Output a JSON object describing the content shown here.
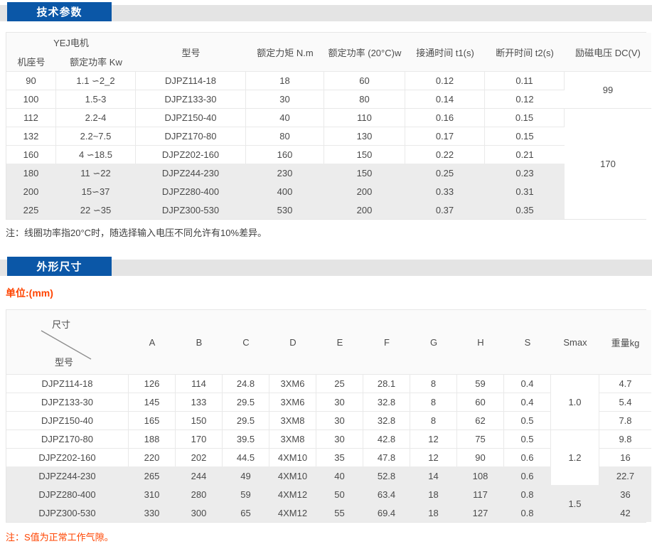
{
  "theme": {
    "accent_blue": "#0b57a7",
    "accent_red": "#ff4400",
    "row_gray": "#ececec"
  },
  "tech": {
    "title": "技术参数",
    "note": "注：线圈功率指20°C时，随选择输入电压不同允许有10%差异。",
    "table": {
      "header": {
        "group": "YEJ电机",
        "frame": "机座号",
        "power_kw": "额定功率 Kw",
        "model": "型号",
        "torque": "额定力矩 N.m",
        "power_20c": "额定功率 (20°C)w",
        "t1": "接通时间 t1(s)",
        "t2": "断开时间 t2(s)",
        "voltage": "励磁电压 DC(V)"
      },
      "rows": [
        [
          "90",
          "1.1 ∽2_2",
          "DJPZ114-18",
          "18",
          "60",
          "0.12",
          "0.11"
        ],
        [
          "100",
          "1.5-3",
          "DJPZ133-30",
          "30",
          "80",
          "0.14",
          "0.12"
        ],
        [
          "112",
          "2.2-4",
          "DJPZ150-40",
          "40",
          "110",
          "0.16",
          "0.15"
        ],
        [
          "132",
          "2.2~7.5",
          "DJPZ170-80",
          "80",
          "130",
          "0.17",
          "0.15"
        ],
        [
          "160",
          "4 ∽18.5",
          "DJPZ202-160",
          "160",
          "150",
          "0.22",
          "0.21"
        ],
        [
          "180",
          "11 ∽22",
          "DJPZ244-230",
          "230",
          "150",
          "0.25",
          "0.23"
        ],
        [
          "200",
          "15∽37",
          "DJPZ280-400",
          "400",
          "200",
          "0.33",
          "0.31"
        ],
        [
          "225",
          "22 ∽35",
          "DJPZ300-530",
          "530",
          "200",
          "0.37",
          "0.35"
        ]
      ],
      "voltage_spans": [
        {
          "value": "99",
          "row": 0,
          "span": 2
        },
        {
          "value": "170",
          "row": 2,
          "span": 6
        }
      ],
      "gray_from": 5
    }
  },
  "dims": {
    "title": "外形尺寸",
    "unit": "单位:(mm)",
    "note": "注：S值为正常工作气隙。",
    "table": {
      "corner_top": "尺寸",
      "corner_bottom": "型号",
      "columns": [
        "A",
        "B",
        "C",
        "D",
        "E",
        "F",
        "G",
        "H",
        "S",
        "Smax",
        "重量kg"
      ],
      "rows": [
        [
          "DJPZ114-18",
          "126",
          "114",
          "24.8",
          "3XM6",
          "25",
          "28.1",
          "8",
          "59",
          "0.4",
          "4.7"
        ],
        [
          "DJPZ133-30",
          "145",
          "133",
          "29.5",
          "3XM6",
          "30",
          "32.8",
          "8",
          "60",
          "0.4",
          "5.4"
        ],
        [
          "DJPZ150-40",
          "165",
          "150",
          "29.5",
          "3XM8",
          "30",
          "32.8",
          "8",
          "62",
          "0.5",
          "7.8"
        ],
        [
          "DJPZ170-80",
          "188",
          "170",
          "39.5",
          "3XM8",
          "30",
          "42.8",
          "12",
          "75",
          "0.5",
          "9.8"
        ],
        [
          "DJPZ202-160",
          "220",
          "202",
          "44.5",
          "4XM10",
          "35",
          "47.8",
          "12",
          "90",
          "0.6",
          "16"
        ],
        [
          "DJPZ244-230",
          "265",
          "244",
          "49",
          "4XM10",
          "40",
          "52.8",
          "14",
          "108",
          "0.6",
          "22.7"
        ],
        [
          "DJPZ280-400",
          "310",
          "280",
          "59",
          "4XM12",
          "50",
          "63.4",
          "18",
          "117",
          "0.8",
          "36"
        ],
        [
          "DJPZ300-530",
          "330",
          "300",
          "65",
          "4XM12",
          "55",
          "69.4",
          "18",
          "127",
          "0.8",
          "42"
        ]
      ],
      "smax_spans": [
        {
          "value": "1.0",
          "row": 0,
          "span": 3
        },
        {
          "value": "1.2",
          "row": 3,
          "span": 3
        },
        {
          "value": "1.5",
          "row": 6,
          "span": 2
        }
      ],
      "gray_from": 5
    }
  }
}
